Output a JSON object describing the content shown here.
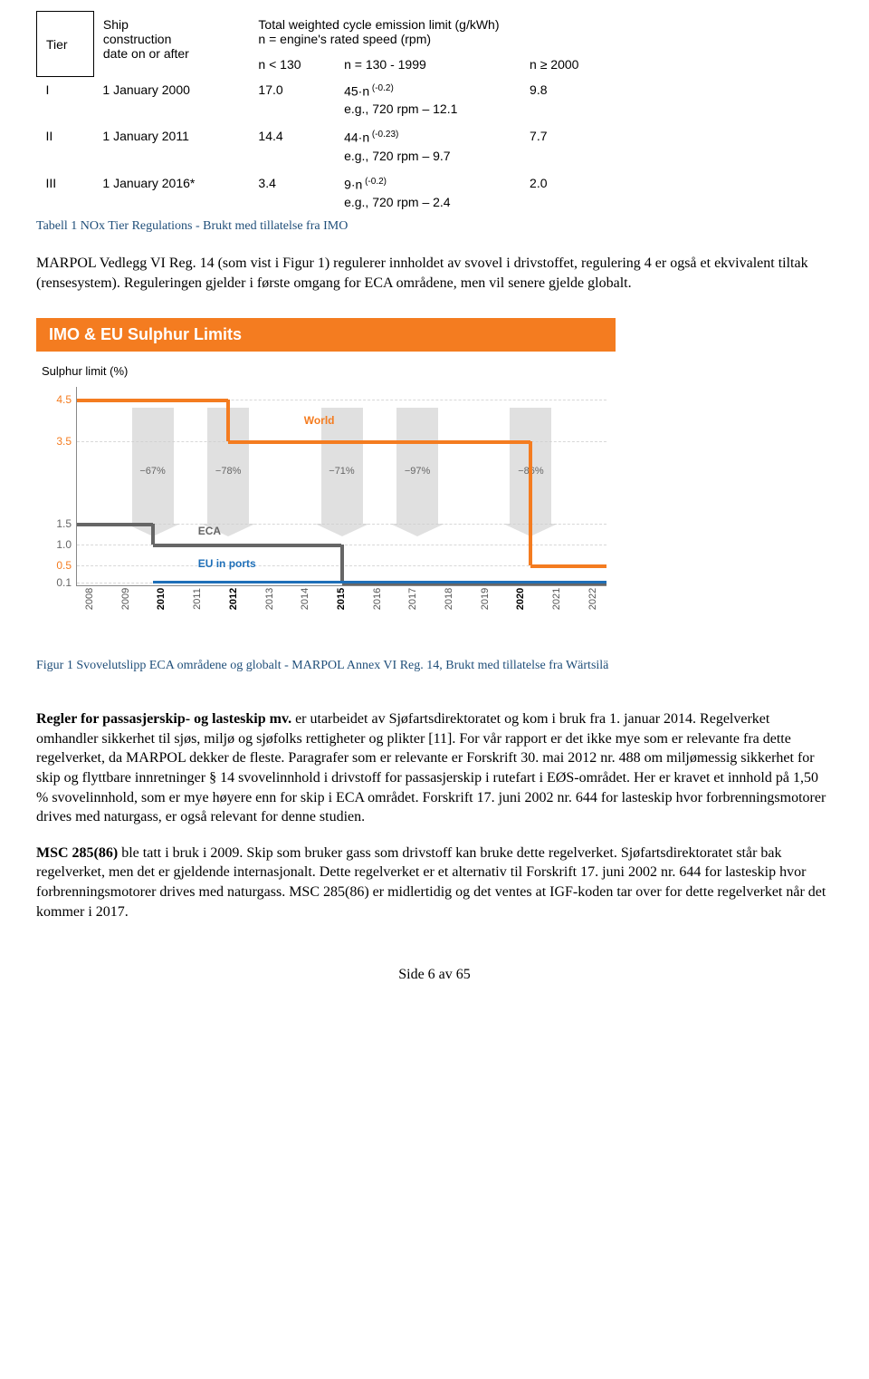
{
  "nox_table": {
    "headers": {
      "tier": "Tier",
      "construction": "Ship\nconstruction\ndate on or after",
      "emission_header": "Total weighted cycle emission limit (g/kWh)\nn = engine's rated speed (rpm)",
      "col_n_low": "n < 130",
      "col_n_mid": "n = 130 - 1999",
      "col_n_high": "n ≥ 2000"
    },
    "rows": [
      {
        "tier": "I",
        "date": "1 January 2000",
        "low": "17.0",
        "mid_formula": "45·n",
        "mid_exp": "(-0.2)",
        "mid_eg": "e.g., 720 rpm – 12.1",
        "high": "9.8"
      },
      {
        "tier": "II",
        "date": "1 January 2011",
        "low": "14.4",
        "mid_formula": "44·n",
        "mid_exp": "(-0.23)",
        "mid_eg": "e.g., 720 rpm – 9.7",
        "high": "7.7"
      },
      {
        "tier": "III",
        "date": "1 January 2016*",
        "low": "3.4",
        "mid_formula": "9·n",
        "mid_exp": "(-0.2)",
        "mid_eg": "e.g., 720 rpm – 2.4",
        "high": "2.0"
      }
    ]
  },
  "tabell_caption": "Tabell 1 NOx Tier Regulations - Brukt med tillatelse fra IMO",
  "para1": "MARPOL Vedlegg VI Reg. 14 (som vist i Figur 1) regulerer innholdet av svovel i drivstoffet, regulering 4 er også et ekvivalent tiltak (rensesystem). Reguleringen gjelder i første omgang for ECA områdene, men vil senere gjelde globalt.",
  "sulphur_chart": {
    "banner": "IMO & EU Sulphur Limits",
    "ytitle": "Sulphur limit (%)",
    "yticks": [
      {
        "v": 4.5,
        "label": "4.5",
        "color": "#f47c20"
      },
      {
        "v": 3.5,
        "label": "3.5",
        "color": "#f47c20"
      },
      {
        "v": 1.5,
        "label": "1.5",
        "color": "#666"
      },
      {
        "v": 1.0,
        "label": "1.0",
        "color": "#666"
      },
      {
        "v": 0.5,
        "label": "0.5",
        "color": "#f47c20"
      },
      {
        "v": 0.1,
        "label": "0.1",
        "color": "#666"
      }
    ],
    "ymax": 4.8,
    "xlabels": [
      "2008",
      "2009",
      "2010",
      "2011",
      "2012",
      "2013",
      "2014",
      "2015",
      "2016",
      "2017",
      "2018",
      "2019",
      "2020",
      "2021",
      "2022"
    ],
    "xbold": [
      "2010",
      "2012",
      "2015",
      "2020"
    ],
    "arrows": [
      {
        "x": 2,
        "pct": "−67%"
      },
      {
        "x": 4,
        "pct": "−78%"
      },
      {
        "x": 7,
        "pct": "−71%"
      },
      {
        "x": 9,
        "pct": "−97%"
      },
      {
        "x": 12,
        "pct": "−86%"
      }
    ],
    "world_label": "World",
    "eca_label": "ECA",
    "eu_label": "EU in ports"
  },
  "figur_caption": "Figur 1 Svovelutslipp ECA områdene og globalt - MARPOL Annex VI Reg. 14, Brukt med tillatelse fra Wärtsilä",
  "para2_lead": "Regler for passasjerskip- og lasteskip mv.",
  "para2_rest": " er utarbeidet av Sjøfartsdirektoratet og kom i bruk fra 1. januar 2014. Regelverket omhandler sikkerhet til sjøs, miljø og sjøfolks rettigheter og plikter [11]. For vår rapport er det ikke mye som er relevante fra dette regelverket, da MARPOL dekker de fleste. Paragrafer som er relevante er Forskrift 30. mai 2012 nr. 488 om miljømessig sikkerhet for skip og flyttbare innretninger § 14 svovelinnhold i drivstoff for passasjerskip i rutefart i EØS-området. Her er kravet et innhold på 1,50 % svovelinnhold, som er mye høyere enn for skip i ECA området. Forskrift 17. juni 2002 nr. 644 for lasteskip hvor forbrenningsmotorer drives med naturgass, er også relevant for denne studien.",
  "para3_lead": "MSC 285(86)",
  "para3_rest": " ble tatt i bruk i 2009. Skip som bruker gass som drivstoff kan bruke dette regelverket. Sjøfartsdirektoratet står bak regelverket, men det er gjeldende internasjonalt. Dette regelverket er et alternativ til Forskrift 17. juni 2002 nr. 644 for lasteskip hvor forbrenningsmotorer drives med naturgass. MSC 285(86) er midlertidig og det ventes at IGF-koden tar over for dette regelverket når det kommer i 2017.",
  "footer": "Side 6 av 65"
}
